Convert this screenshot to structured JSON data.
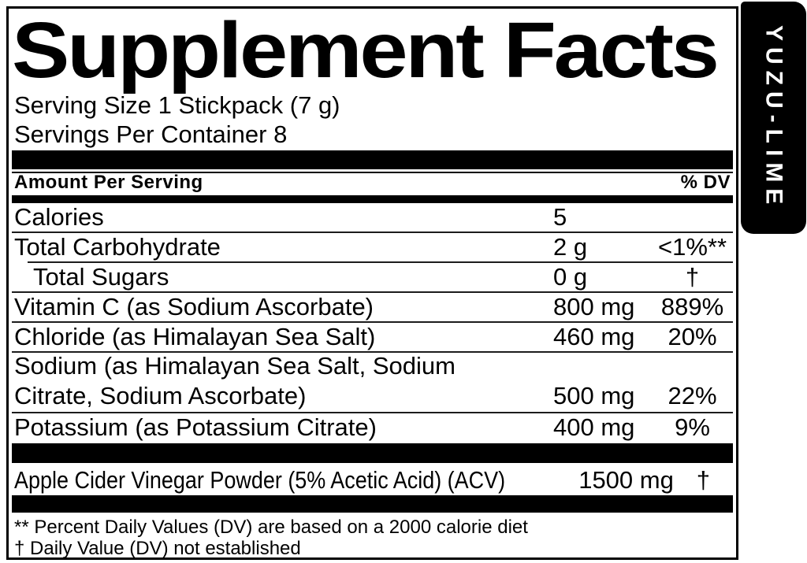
{
  "title": "Supplement Facts",
  "serving": {
    "size_label": "Serving Size 1 Stickpack (7 g)",
    "per_container_label": "Servings Per Container 8"
  },
  "header": {
    "amount_per_serving": "Amount Per Serving",
    "percent_dv": "% DV"
  },
  "rows": [
    {
      "name": "Calories",
      "amount": "5",
      "dv": ""
    },
    {
      "name": "Total Carbohydrate",
      "amount": "2 g",
      "dv": "<1%**"
    },
    {
      "name": "Total Sugars",
      "amount": "0 g",
      "dv": "†"
    },
    {
      "name": "Vitamin C (as Sodium Ascorbate)",
      "amount": "800 mg",
      "dv": "889%"
    },
    {
      "name": "Chloride (as Himalayan Sea Salt)",
      "amount": "460 mg",
      "dv": "20%"
    },
    {
      "name_lines": [
        "Sodium (as Himalayan Sea Salt, Sodium",
        "Citrate, Sodium Ascorbate)"
      ],
      "amount": "500 mg",
      "dv": "22%"
    },
    {
      "name": "Potassium (as Potassium Citrate)",
      "amount": "400 mg",
      "dv": "9%"
    }
  ],
  "other_ingredient": {
    "name": "Apple Cider Vinegar Powder (5% Acetic Acid) (ACV)",
    "amount": "1500 mg",
    "dv": "†"
  },
  "footnotes": [
    "** Percent Daily Values (DV) are based on a 2000 calorie diet",
    "† Daily Value (DV) not established"
  ],
  "flavor_tab": {
    "label": "YUZU-LIME"
  },
  "colors": {
    "ink": "#000000",
    "paper": "#ffffff"
  }
}
